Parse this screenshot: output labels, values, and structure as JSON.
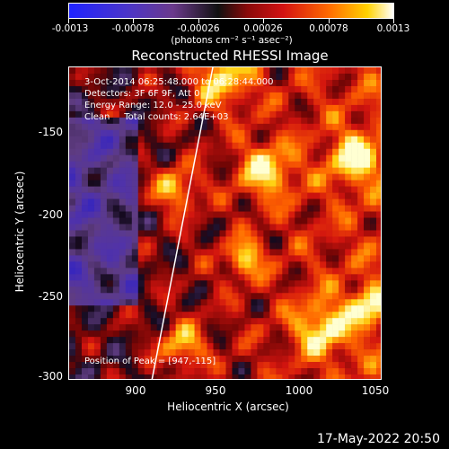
{
  "colorbar": {
    "tick_labels": [
      "-0.0013",
      "-0.00078",
      "-0.00026",
      "0.00026",
      "0.00078",
      "0.0013"
    ],
    "units_label": "(photons cm⁻² s⁻¹ asec⁻²)"
  },
  "plot": {
    "title": "Reconstructed RHESSI Image",
    "overlay": {
      "time_range": "3-Oct-2014 06:25:48.000 to 06:28:44.000",
      "detectors": "Detectors: 3F 6F 9F, Att 0",
      "energy_range": "Energy Range: 12.0 - 25.0 keV",
      "method": "Clean     Total counts: 2.64E+03",
      "peak": "Position of Peak = [947,-115]"
    },
    "x_axis": {
      "label": "Heliocentric X (arcsec)",
      "ticks": [
        "900",
        "950",
        "1000",
        "1050"
      ]
    },
    "y_axis": {
      "label": "Heliocentric Y (arcsec)",
      "ticks": [
        "-150",
        "-200",
        "-250",
        "-300"
      ]
    }
  },
  "timestamp": "17-May-2022 20:50"
}
